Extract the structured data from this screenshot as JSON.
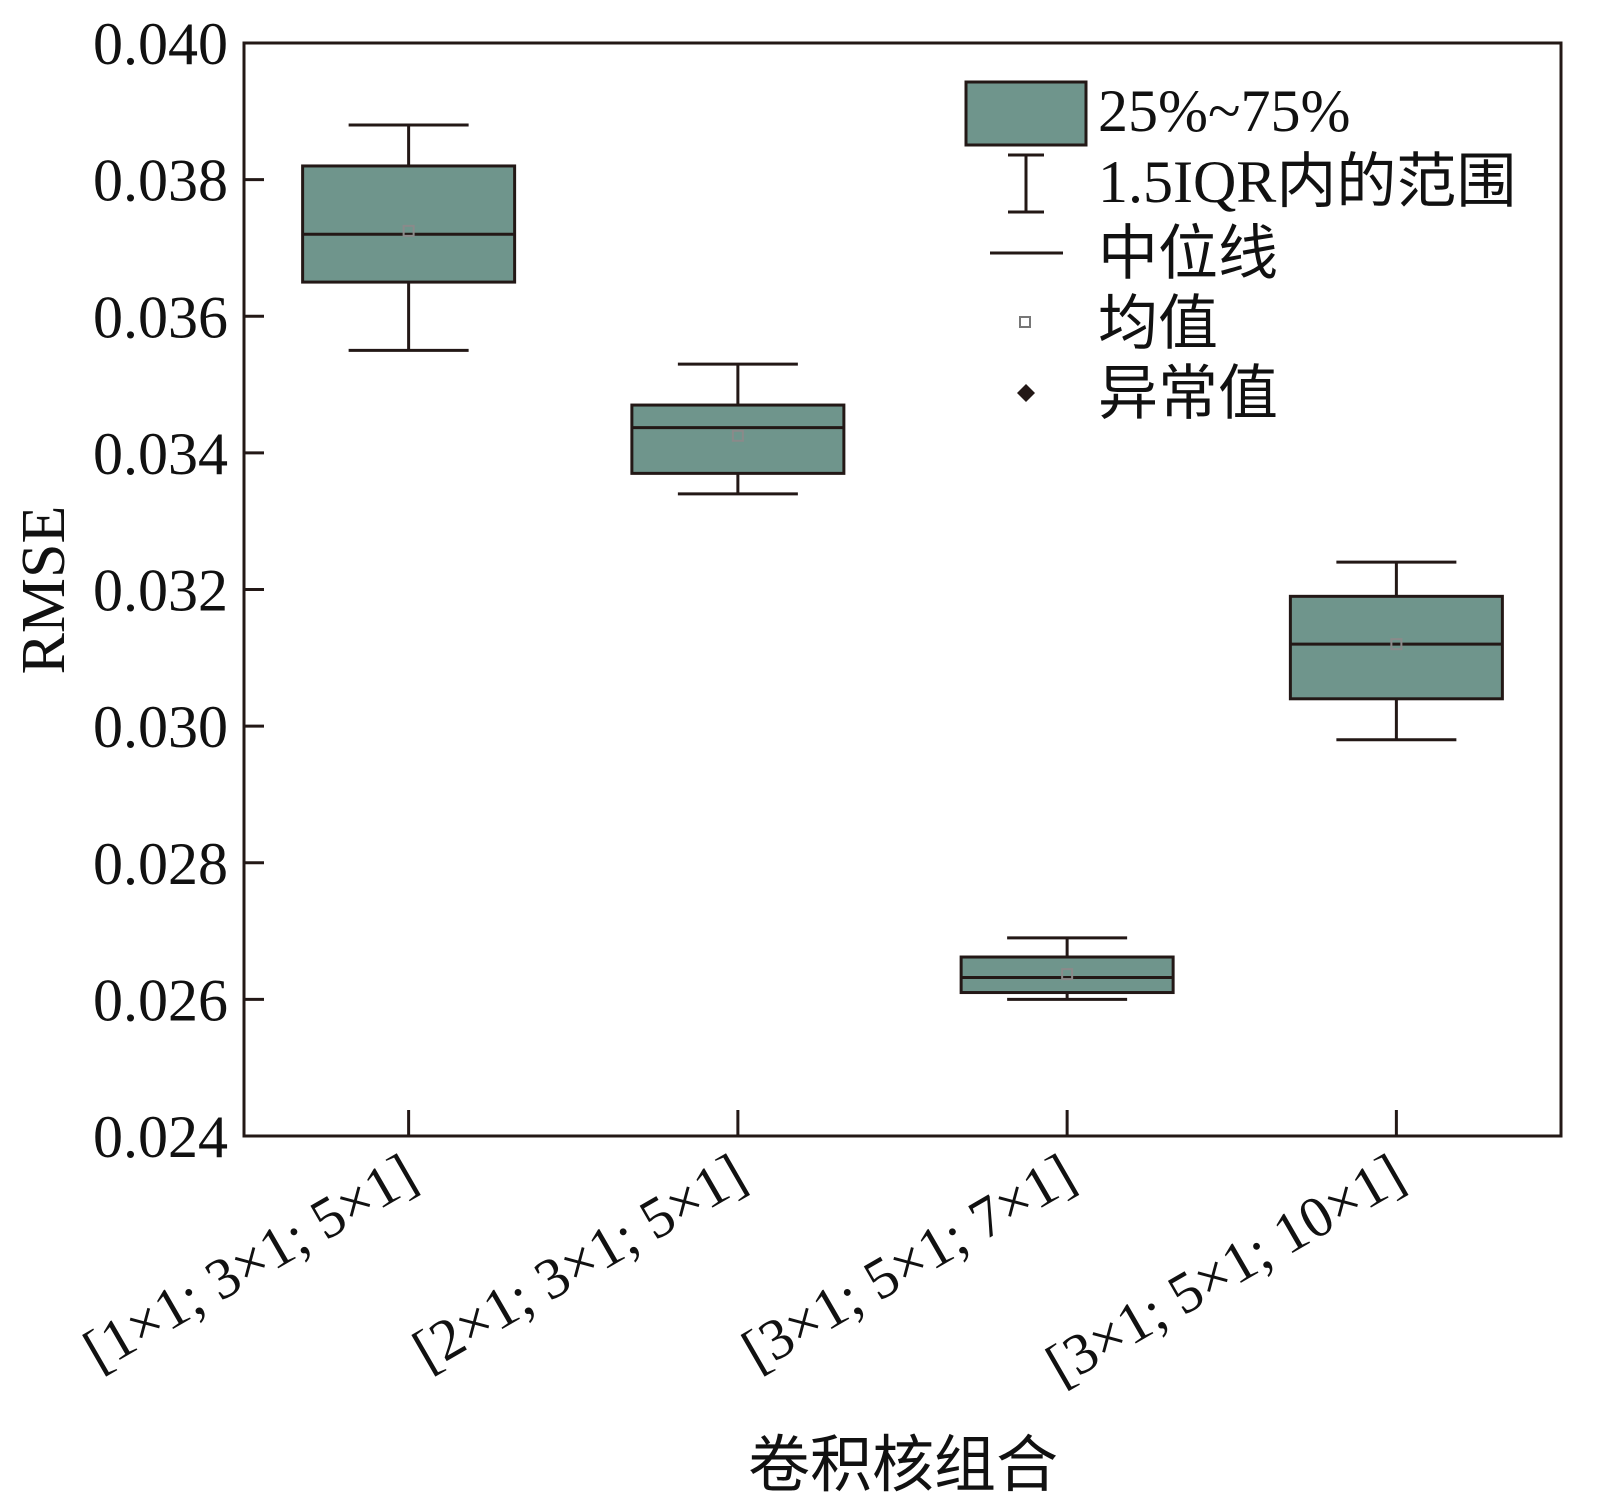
{
  "chart_data": {
    "type": "box",
    "xlabel": "卷积核组合",
    "ylabel": "RMSE",
    "ylim": [
      0.024,
      0.04
    ],
    "yticks": [
      "0.024",
      "0.026",
      "0.028",
      "0.030",
      "0.032",
      "0.034",
      "0.036",
      "0.038",
      "0.040"
    ],
    "categories": [
      "[1×1; 3×1; 5×1]",
      "[2×1; 3×1; 5×1]",
      "[3×1; 5×1; 7×1]",
      "[3×1; 5×1; 10×1]"
    ],
    "boxes": [
      {
        "whisker_low": 0.0355,
        "q1": 0.0365,
        "median": 0.0372,
        "q3": 0.0382,
        "whisker_high": 0.0388,
        "mean": 0.03725
      },
      {
        "whisker_low": 0.0334,
        "q1": 0.0337,
        "median": 0.03437,
        "q3": 0.0347,
        "whisker_high": 0.0353,
        "mean": 0.03425
      },
      {
        "whisker_low": 0.026,
        "q1": 0.0261,
        "median": 0.02632,
        "q3": 0.02662,
        "whisker_high": 0.0269,
        "mean": 0.02637
      },
      {
        "whisker_low": 0.0298,
        "q1": 0.0304,
        "median": 0.0312,
        "q3": 0.0319,
        "whisker_high": 0.0324,
        "mean": 0.0312
      }
    ],
    "box_color": "#6f958c",
    "line_color": "#231816",
    "grid": false,
    "legend_position": "top-right",
    "legend": {
      "box": "25%~75%",
      "whisker": "1.5IQR内的范围",
      "median": "中位线",
      "mean": "均值",
      "outlier": "异常值"
    }
  }
}
